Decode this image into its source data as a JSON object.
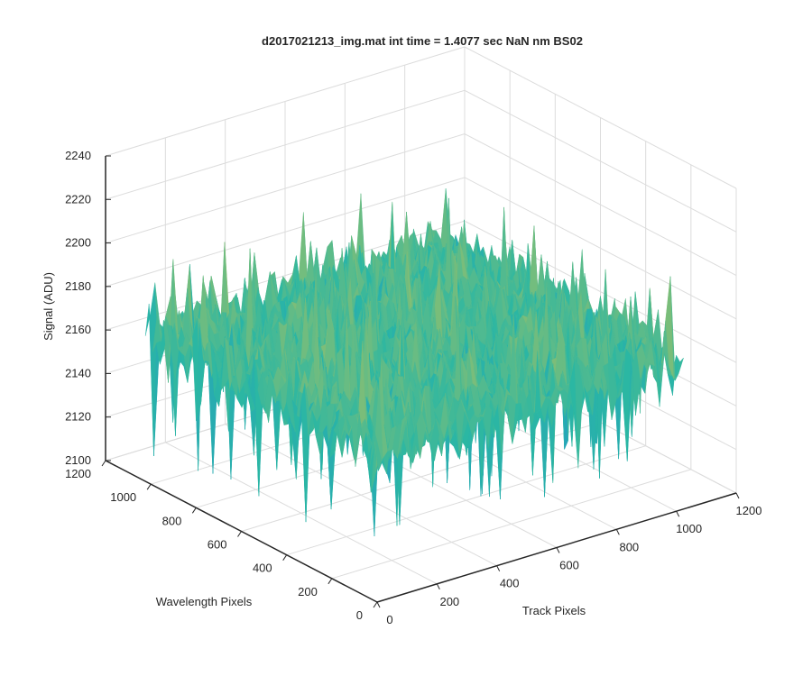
{
  "chart_data": {
    "type": "surface",
    "title": "d2017021213_img.mat int time = 1.4077 sec  NaN nm BS02",
    "xlabel": "Track Pixels",
    "ylabel": "Wavelength Pixels",
    "zlabel": "Signal (ADU)",
    "xlim": [
      0,
      1200
    ],
    "ylim": [
      0,
      1200
    ],
    "zlim": [
      2100,
      2240
    ],
    "xticks": [
      0,
      200,
      400,
      600,
      800,
      1000,
      1200
    ],
    "yticks": [
      0,
      200,
      400,
      600,
      800,
      1000,
      1200
    ],
    "zticks": [
      2100,
      2120,
      2140,
      2160,
      2180,
      2200,
      2220,
      2240
    ],
    "xtick_labels": [
      "0",
      "200",
      "400",
      "600",
      "800",
      "1000",
      "1200"
    ],
    "ytick_labels": [
      "0",
      "200",
      "400",
      "600",
      "800",
      "1000",
      "1200"
    ],
    "ztick_labels": [
      "2100",
      "2120",
      "2140",
      "2160",
      "2180",
      "2200",
      "2220",
      "2240"
    ],
    "surface_extent": {
      "x": [
        0,
        1024
      ],
      "y": [
        0,
        1024
      ]
    },
    "surface_stats": {
      "mean": 2168,
      "min": 2103,
      "max": 2229
    },
    "colormap": "parula",
    "colors": {
      "low": "#1f8fd6",
      "mid": "#2bb7a3",
      "high": "#e0c545"
    },
    "grid": true,
    "view": "3d-isometric"
  }
}
